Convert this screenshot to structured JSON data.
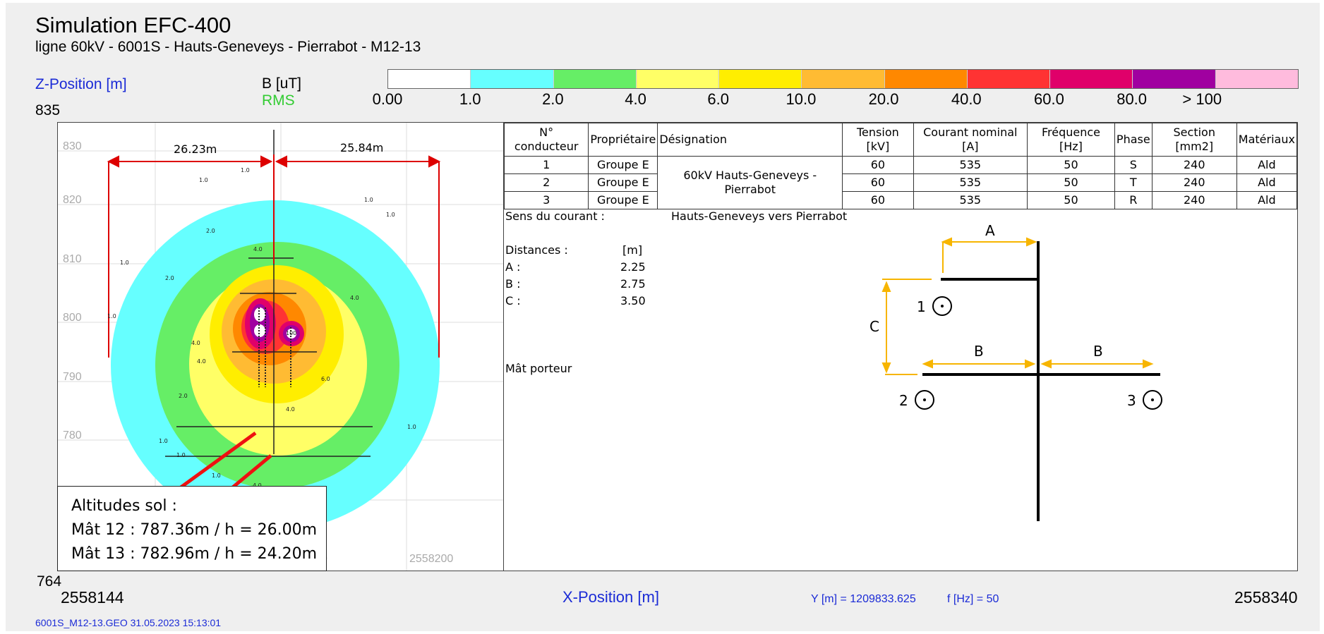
{
  "header": {
    "title": "Simulation EFC-400",
    "subtitle": "ligne 60kV - 6001S - Hauts-Geneveys - Pierrabot - M12-13"
  },
  "axes": {
    "z_label": "Z-Position [m]",
    "z_max": "835",
    "z_min": "764",
    "x_label": "X-Position [m]",
    "x_min": "2558144",
    "x_max": "2558340",
    "z_ticks": [
      "830",
      "820",
      "810",
      "800",
      "790",
      "780"
    ],
    "x_ticks": [
      "2558200"
    ],
    "x_tick_partial": "0"
  },
  "legend": {
    "unit": "B [uT]",
    "mode": "RMS",
    "levels": [
      "0.00",
      "1.0",
      "2.0",
      "4.0",
      "6.0",
      "10.0",
      "20.0",
      "40.0",
      "60.0",
      "80.0",
      "> 100"
    ],
    "colors": [
      "#ffffff",
      "#66ffff",
      "#66ee66",
      "#ffff66",
      "#ffee00",
      "#ffbb33",
      "#ff8800",
      "#ff3333",
      "#e0006a",
      "#a000a0",
      "#ffbbdd"
    ]
  },
  "footer": {
    "y_info": "Y [m] = 1209833.625",
    "f_info": "f [Hz] = 50",
    "file_info": "6001S_M12-13.GEO  31.05.2023  15:13:01"
  },
  "plot": {
    "dim_left": "26.23m",
    "dim_right": "25.84m",
    "contour_labels": [
      "1.0",
      "2.0",
      "4.0",
      "6.0",
      "100"
    ]
  },
  "conductors": {
    "headers": [
      "N° conducteur",
      "Propriétaire",
      "Désignation",
      "Tension [kV]",
      "Courant nominal [A]",
      "Fréquence [Hz]",
      "Phase",
      "Section [mm2]",
      "Matériaux"
    ],
    "designation": "60kV Hauts-Geneveys - Pierrabot",
    "rows": [
      {
        "n": "1",
        "owner": "Groupe E",
        "tension": "60",
        "courant": "535",
        "freq": "50",
        "phase": "S",
        "section": "240",
        "material": "Ald"
      },
      {
        "n": "2",
        "owner": "Groupe E",
        "tension": "60",
        "courant": "535",
        "freq": "50",
        "phase": "T",
        "section": "240",
        "material": "Ald"
      },
      {
        "n": "3",
        "owner": "Groupe E",
        "tension": "60",
        "courant": "535",
        "freq": "50",
        "phase": "R",
        "section": "240",
        "material": "Ald"
      }
    ]
  },
  "details": {
    "sens_label": "Sens du courant :",
    "sens_value": "Hauts-Geneveys vers Pierrabot",
    "distances_label": "Distances :",
    "distances_unit": "[m]",
    "distances": [
      {
        "key": "A :",
        "value": "2.25"
      },
      {
        "key": "B :",
        "value": "2.75"
      },
      {
        "key": "C :",
        "value": "3.50"
      }
    ],
    "mast": "Mât porteur"
  },
  "diagram": {
    "labels": {
      "a": "A",
      "b": "B",
      "c": "C"
    },
    "conductors": [
      "1",
      "2",
      "3"
    ]
  },
  "altitudes": {
    "title": "Altitudes sol :",
    "lines": [
      "Mât 12 : 787.36m / h = 26.00m",
      "Mât 13 : 782.96m / h = 24.20m"
    ]
  }
}
